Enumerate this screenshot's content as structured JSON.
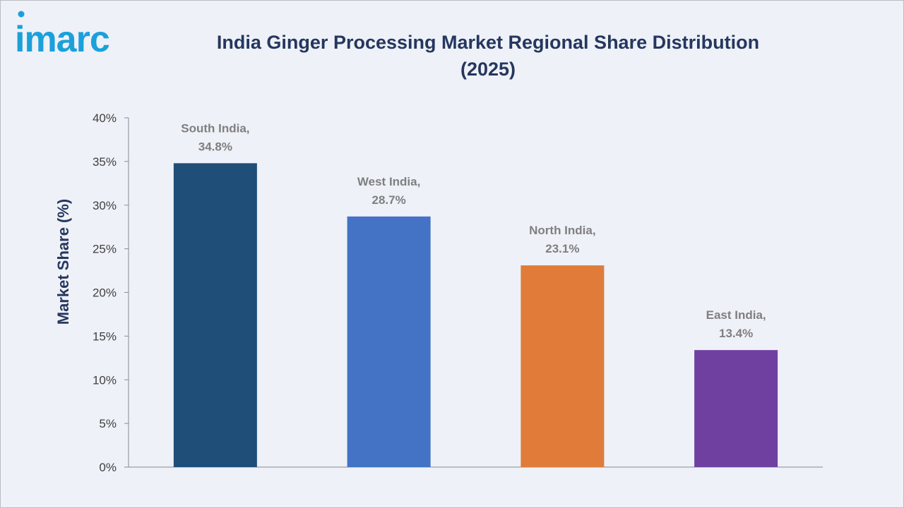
{
  "brand": {
    "logo_text": "imarc",
    "logo_color": "#1ca0dc"
  },
  "chart_data": {
    "type": "bar",
    "title": "India Ginger Processing Market Regional Share Distribution",
    "subtitle": "(2025)",
    "xlabel": "",
    "ylabel": "Market Share (%)",
    "ylim": [
      0,
      40
    ],
    "yticks": [
      "0%",
      "5%",
      "10%",
      "15%",
      "20%",
      "25%",
      "30%",
      "35%",
      "40%"
    ],
    "categories": [
      "South India",
      "West India",
      "North India",
      "East India"
    ],
    "values": [
      34.8,
      28.7,
      23.1,
      13.4
    ],
    "data_labels": [
      [
        "South India,",
        "34.8%"
      ],
      [
        "West India,",
        "28.7%"
      ],
      [
        "North India,",
        "23.1%"
      ],
      [
        "East India,",
        "13.4%"
      ]
    ],
    "colors": [
      "#1f4e79",
      "#4472c4",
      "#e07b39",
      "#7040a0"
    ],
    "grid": false,
    "legend": "none"
  }
}
